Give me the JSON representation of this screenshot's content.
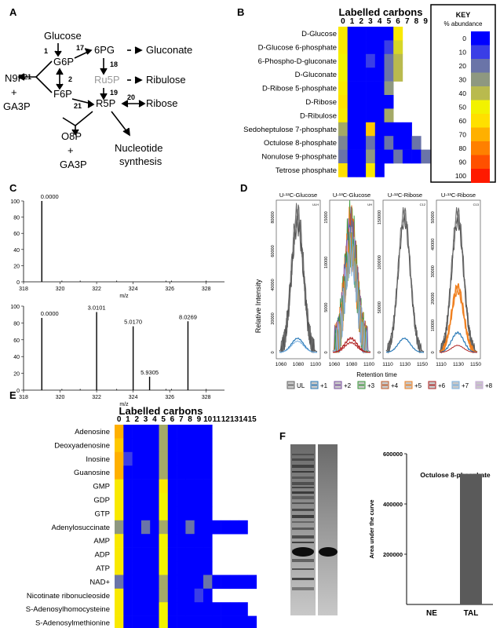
{
  "panels": {
    "A": {
      "letter": "A",
      "nodes": {
        "glucose": "Glucose",
        "g6p": "G6P",
        "pg6": "6PG",
        "gluconate": "Gluconate",
        "ru5p": "Ru5P",
        "ribulose": "Ribulose",
        "f6p": "F6P",
        "r5p": "R5P",
        "ribose": "Ribose",
        "n9p": "N9P",
        "plus1": "+",
        "ga3p1": "GA3P",
        "o8p": "O8P",
        "plus2": "+",
        "ga3p2": "GA3P",
        "nuc1": "Nucleotide",
        "nuc2": "synthesis"
      },
      "enzymes": {
        "e1": "1",
        "e17": "17",
        "e18": "18",
        "e2": "2",
        "e19": "19",
        "e21a": "21",
        "e21b": "21",
        "e20": "20"
      }
    },
    "B": {
      "letter": "B",
      "title": "Labelled carbons",
      "cols": [
        "0",
        "1",
        "2",
        "3",
        "4",
        "5",
        "6",
        "7",
        "8",
        "9"
      ],
      "rows": [
        {
          "label": "D-Glucose",
          "cells": [
            55,
            0,
            0,
            0,
            0,
            0,
            55
          ]
        },
        {
          "label": "D-Glucose 6-phosphate",
          "cells": [
            55,
            0,
            0,
            0,
            0,
            10,
            45
          ]
        },
        {
          "label": "6-Phospho-D-gluconate",
          "cells": [
            50,
            0,
            0,
            10,
            0,
            20,
            40
          ]
        },
        {
          "label": "D-Gluconate",
          "cells": [
            50,
            0,
            0,
            0,
            0,
            20,
            40
          ]
        },
        {
          "label": "D-Ribose 5-phosphate",
          "cells": [
            55,
            0,
            0,
            0,
            0,
            30
          ]
        },
        {
          "label": "D-Ribose",
          "cells": [
            60,
            0,
            0,
            0,
            0,
            0
          ]
        },
        {
          "label": "D-Ribulose",
          "cells": [
            55,
            0,
            0,
            0,
            0,
            35
          ]
        },
        {
          "label": "Sedoheptulose 7-phosphate",
          "cells": [
            35,
            0,
            0,
            65,
            0,
            0,
            0,
            0
          ]
        },
        {
          "label": "Octulose 8-phosphate",
          "cells": [
            25,
            0,
            0,
            20,
            0,
            20,
            0,
            0,
            20
          ]
        },
        {
          "label": "Nonulose 9-phosphate",
          "cells": [
            20,
            0,
            0,
            30,
            0,
            0,
            20,
            0,
            0,
            20
          ]
        },
        {
          "label": "Tetrose phosphate",
          "cells": [
            60,
            0,
            0,
            55,
            0
          ]
        }
      ],
      "key": {
        "title1": "KEY",
        "title2": "% abundance",
        "levels": [
          "0",
          "10",
          "20",
          "30",
          "40",
          "50",
          "60",
          "70",
          "80",
          "90",
          "100"
        ]
      }
    },
    "C": {
      "letter": "C",
      "top": {
        "peaks": [
          {
            "mz": 319.0,
            "rel": 100,
            "label": "0.0000"
          }
        ],
        "xticks": [
          "318",
          "320",
          "322",
          "324",
          "326",
          "328"
        ],
        "yticks": [
          "0",
          "20",
          "40",
          "60",
          "80",
          "100"
        ],
        "xlabel": "m/z"
      },
      "bottom": {
        "peaks": [
          {
            "mz": 319.0,
            "rel": 86,
            "label": "0.0000"
          },
          {
            "mz": 322.0,
            "rel": 93,
            "label": "3.0101"
          },
          {
            "mz": 324.0,
            "rel": 76,
            "label": "5.0170"
          },
          {
            "mz": 324.9,
            "rel": 16,
            "label": "5.9305"
          },
          {
            "mz": 327.0,
            "rel": 82,
            "label": "8.0269"
          }
        ],
        "xticks": [
          "318",
          "320",
          "322",
          "324",
          "326",
          "328"
        ],
        "yticks": [
          "0",
          "20",
          "40",
          "60",
          "80",
          "100"
        ],
        "xlabel": "m/z"
      }
    },
    "D": {
      "letter": "D",
      "ylabel": "Relative Intensity",
      "xlabel": "Retention time",
      "subplots": [
        {
          "title": "U-¹²C-Glucose",
          "corner": "ULH",
          "yticks": [
            "0",
            "20000",
            "40000",
            "60000",
            "80000"
          ],
          "xticks": [
            "1060",
            "1080",
            "1100"
          ]
        },
        {
          "title": "U-¹³C-Glucose",
          "corner": "UH",
          "yticks": [
            "0",
            "5000",
            "10000",
            "15000"
          ],
          "xticks": [
            "1060",
            "1080",
            "1100"
          ]
        },
        {
          "title": "U-¹²C-Ribose",
          "corner": "C12",
          "yticks": [
            "0",
            "50000",
            "100000",
            "150000"
          ],
          "xticks": [
            "1110",
            "1130",
            "1150"
          ]
        },
        {
          "title": "U-¹³C-Ribose",
          "corner": "C13",
          "yticks": [
            "0",
            "10000",
            "20000",
            "30000",
            "40000",
            "50000"
          ],
          "xticks": [
            "1110",
            "1130",
            "1150"
          ]
        }
      ],
      "legend": [
        {
          "label": "UL",
          "color": "#666666"
        },
        {
          "label": "+1",
          "color": "#2a7ab8"
        },
        {
          "label": "+2",
          "color": "#7b4fa0"
        },
        {
          "label": "+3",
          "color": "#3a9a3a"
        },
        {
          "label": "+4",
          "color": "#c05a2a"
        },
        {
          "label": "+5",
          "color": "#f08020"
        },
        {
          "label": "+6",
          "color": "#b02020"
        },
        {
          "label": "+7",
          "color": "#7ab0e0"
        },
        {
          "label": "+8",
          "color": "#c8a8d8"
        }
      ]
    },
    "E": {
      "letter": "E",
      "title": "Labelled carbons",
      "cols": [
        "0",
        "1",
        "2",
        "3",
        "4",
        "5",
        "6",
        "7",
        "8",
        "9",
        "10",
        "11",
        "12",
        "13",
        "14",
        "15"
      ],
      "rows": [
        {
          "label": "Adenosine",
          "cells": [
            70,
            0,
            0,
            0,
            0,
            35,
            0,
            0,
            0,
            0,
            0
          ]
        },
        {
          "label": "Deoxyadenosine",
          "cells": [
            65,
            0,
            0,
            0,
            0,
            35,
            0,
            0,
            0,
            0,
            0
          ]
        },
        {
          "label": "Inosine",
          "cells": [
            70,
            10,
            0,
            0,
            0,
            35,
            0,
            0,
            0,
            0,
            0
          ]
        },
        {
          "label": "Guanosine",
          "cells": [
            70,
            0,
            0,
            0,
            0,
            35,
            0,
            0,
            0,
            0,
            0
          ]
        },
        {
          "label": "GMP",
          "cells": [
            55,
            0,
            0,
            0,
            0,
            55,
            0,
            0,
            0,
            0,
            0
          ]
        },
        {
          "label": "GDP",
          "cells": [
            55,
            0,
            0,
            0,
            0,
            50,
            0,
            0,
            0,
            0,
            0
          ]
        },
        {
          "label": "GTP",
          "cells": [
            55,
            0,
            0,
            0,
            0,
            50,
            0,
            0,
            0,
            0,
            0
          ]
        },
        {
          "label": "Adenylosuccinate",
          "cells": [
            30,
            0,
            0,
            20,
            0,
            35,
            0,
            0,
            20,
            0,
            0,
            0,
            0,
            0,
            0
          ]
        },
        {
          "label": "AMP",
          "cells": [
            55,
            0,
            0,
            0,
            0,
            50,
            0,
            0,
            0,
            0,
            0
          ]
        },
        {
          "label": "ADP",
          "cells": [
            55,
            0,
            0,
            0,
            0,
            50,
            0,
            0,
            0,
            0,
            0
          ]
        },
        {
          "label": "ATP",
          "cells": [
            55,
            0,
            0,
            0,
            0,
            50,
            0,
            0,
            0,
            0,
            0
          ]
        },
        {
          "label": "NAD+",
          "cells": [
            20,
            0,
            0,
            0,
            0,
            35,
            0,
            0,
            0,
            0,
            20,
            0,
            0,
            0,
            0,
            0
          ]
        },
        {
          "label": "Nicotinate ribonucleoside",
          "cells": [
            55,
            0,
            0,
            0,
            0,
            35,
            0,
            0,
            0,
            10,
            0
          ]
        },
        {
          "label": "S-Adenosylhomocysteine",
          "cells": [
            55,
            0,
            0,
            0,
            0,
            50,
            0,
            0,
            0,
            0,
            0,
            0,
            0,
            0,
            0
          ]
        },
        {
          "label": "S-Adenosylmethionine",
          "cells": [
            55,
            0,
            0,
            0,
            0,
            50,
            0,
            0,
            0,
            0,
            0,
            0,
            0,
            0,
            0,
            0
          ]
        }
      ]
    },
    "F": {
      "letter": "F",
      "ylabel": "Area under the curve",
      "yticks": [
        "200000",
        "400000",
        "600000"
      ],
      "title": "Octulose 8-phosphate"
    }
  },
  "chart_data": [
    {
      "type": "bar",
      "title": "Octulose 8-phosphate",
      "ylabel": "Area under the curve",
      "categories": [
        "NE",
        "TAL"
      ],
      "values": [
        0,
        520000
      ],
      "ylim": [
        0,
        600000
      ]
    },
    {
      "type": "bar",
      "xlabel": "m/z",
      "x": [
        319.0
      ],
      "values": [
        100
      ],
      "labels": [
        "0.0000"
      ],
      "xlim": [
        318,
        329
      ],
      "ylim": [
        0,
        100
      ]
    },
    {
      "type": "bar",
      "xlabel": "m/z",
      "x": [
        319.0,
        322.0,
        324.0,
        324.9,
        327.0
      ],
      "values": [
        86,
        93,
        76,
        16,
        82
      ],
      "labels": [
        "0.0000",
        "3.0101",
        "5.0170",
        "5.9305",
        "8.0269"
      ],
      "xlim": [
        318,
        329
      ],
      "ylim": [
        0,
        100
      ]
    }
  ]
}
